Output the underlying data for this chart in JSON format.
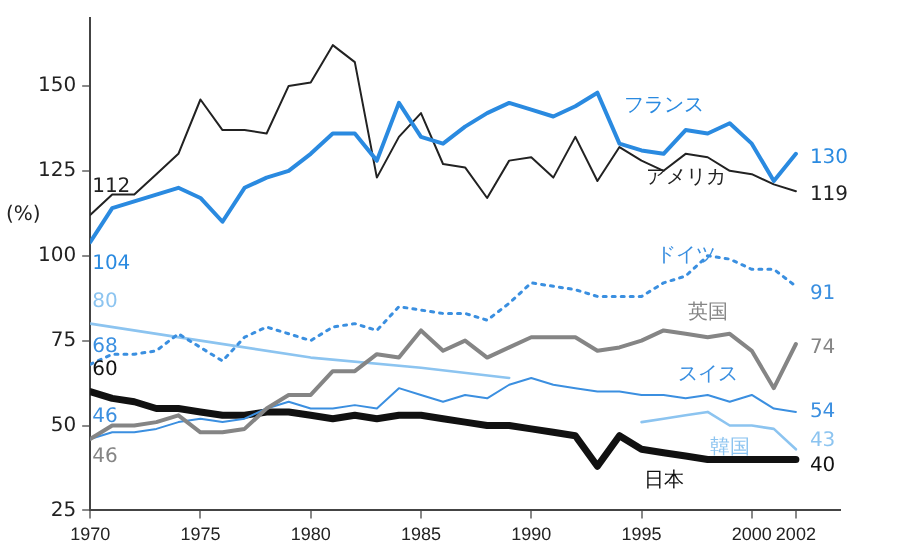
{
  "chart_data": {
    "type": "line",
    "ylabel": "(%)",
    "x": [
      1970,
      1971,
      1972,
      1973,
      1974,
      1975,
      1976,
      1977,
      1978,
      1979,
      1980,
      1981,
      1982,
      1983,
      1984,
      1985,
      1986,
      1987,
      1988,
      1989,
      1990,
      1991,
      1992,
      1993,
      1994,
      1995,
      1996,
      1997,
      1998,
      1999,
      2000,
      2001,
      2002
    ],
    "series": [
      {
        "name": "フランス",
        "color": "#2a8ae0",
        "values": [
          104,
          114,
          116,
          118,
          120,
          117,
          110,
          120,
          123,
          125,
          130,
          136,
          136,
          128,
          145,
          135,
          133,
          138,
          142,
          145,
          143,
          141,
          144,
          148,
          133,
          131,
          130,
          137,
          136,
          139,
          133,
          122,
          130
        ],
        "value_labels": [
          "104",
          null,
          null,
          null,
          null,
          null,
          null,
          null,
          null,
          null,
          null,
          null,
          null,
          null,
          null,
          null,
          null,
          null,
          null,
          null,
          null,
          null,
          null,
          null,
          null,
          null,
          null,
          null,
          null,
          null,
          null,
          null,
          "130"
        ]
      },
      {
        "name": "アメリカ",
        "color": "#222222",
        "values": [
          112,
          118,
          118,
          124,
          130,
          146,
          137,
          137,
          136,
          150,
          151,
          162,
          157,
          123,
          135,
          142,
          127,
          126,
          117,
          128,
          129,
          123,
          135,
          122,
          132,
          128,
          125,
          130,
          129,
          125,
          124,
          121,
          119
        ],
        "value_labels": [
          "112",
          null,
          null,
          null,
          null,
          null,
          null,
          null,
          null,
          null,
          null,
          null,
          null,
          null,
          null,
          null,
          null,
          null,
          null,
          null,
          null,
          null,
          null,
          null,
          null,
          null,
          null,
          null,
          null,
          null,
          null,
          null,
          "119"
        ]
      },
      {
        "name": "ドイツ",
        "color": "#3a8fe0",
        "line_style": "dotted",
        "values": [
          68,
          71,
          71,
          72,
          77,
          73,
          69,
          76,
          79,
          77,
          75,
          79,
          80,
          78,
          85,
          84,
          83,
          83,
          81,
          86,
          92,
          91,
          90,
          88,
          88,
          88,
          92,
          94,
          100,
          99,
          96,
          96,
          91
        ],
        "value_labels": [
          "68",
          null,
          null,
          null,
          null,
          null,
          null,
          null,
          null,
          null,
          null,
          null,
          null,
          null,
          null,
          null,
          null,
          null,
          null,
          null,
          null,
          null,
          null,
          null,
          null,
          null,
          null,
          null,
          null,
          null,
          null,
          null,
          "91"
        ]
      },
      {
        "name": "英国",
        "color": "#858585",
        "values": [
          46,
          50,
          50,
          51,
          53,
          48,
          48,
          49,
          55,
          59,
          59,
          66,
          66,
          71,
          70,
          78,
          72,
          75,
          70,
          73,
          76,
          76,
          76,
          72,
          73,
          75,
          78,
          77,
          76,
          77,
          72,
          61,
          74
        ],
        "value_labels": [
          "46",
          null,
          null,
          null,
          null,
          null,
          null,
          null,
          null,
          null,
          null,
          null,
          null,
          null,
          null,
          null,
          null,
          null,
          null,
          null,
          null,
          null,
          null,
          null,
          null,
          null,
          null,
          null,
          null,
          null,
          null,
          null,
          "74"
        ]
      },
      {
        "name": "スイス",
        "color": "#3b8fe0",
        "values": [
          46,
          48,
          48,
          49,
          51,
          52,
          51,
          52,
          55,
          57,
          55,
          55,
          56,
          55,
          61,
          59,
          57,
          59,
          58,
          62,
          64,
          62,
          61,
          60,
          60,
          59,
          59,
          58,
          59,
          57,
          59,
          55,
          54
        ],
        "value_labels": [
          "46",
          null,
          null,
          null,
          null,
          null,
          null,
          null,
          null,
          null,
          null,
          null,
          null,
          null,
          null,
          null,
          null,
          null,
          null,
          null,
          null,
          null,
          null,
          null,
          null,
          null,
          null,
          null,
          null,
          null,
          null,
          null,
          "54"
        ]
      },
      {
        "name": "韓国",
        "color": "#8cc4f0",
        "x": [
          1970,
          1975,
          1980,
          1985,
          1989,
          1990,
          1995,
          1996,
          1997,
          1998,
          1999,
          2000,
          2001,
          2002
        ],
        "values": [
          80,
          75,
          70,
          67,
          64,
          null,
          51,
          52,
          53,
          54,
          50,
          50,
          49,
          43
        ],
        "value_labels": [
          "80",
          null,
          null,
          null,
          null,
          null,
          null,
          null,
          null,
          null,
          null,
          null,
          null,
          "43"
        ]
      },
      {
        "name": "日本",
        "color": "#111111",
        "values": [
          60,
          58,
          57,
          55,
          55,
          54,
          53,
          53,
          54,
          54,
          53,
          52,
          53,
          52,
          53,
          53,
          52,
          51,
          50,
          50,
          49,
          48,
          47,
          38,
          47,
          43,
          42,
          41,
          40,
          40,
          40,
          40,
          40
        ],
        "value_labels": [
          "60",
          null,
          null,
          null,
          null,
          null,
          null,
          null,
          null,
          null,
          null,
          null,
          null,
          null,
          null,
          null,
          null,
          null,
          null,
          null,
          null,
          null,
          null,
          null,
          null,
          null,
          null,
          null,
          null,
          null,
          null,
          null,
          "40"
        ]
      }
    ],
    "xlim": [
      1970,
      2004
    ],
    "xticks": [
      1970,
      1975,
      1980,
      1985,
      1990,
      1995,
      2000,
      2002
    ],
    "ylim": [
      25,
      170
    ],
    "yticks": [
      25,
      50,
      75,
      100,
      125,
      150
    ],
    "grid": false,
    "legend": false,
    "marker": "none"
  }
}
